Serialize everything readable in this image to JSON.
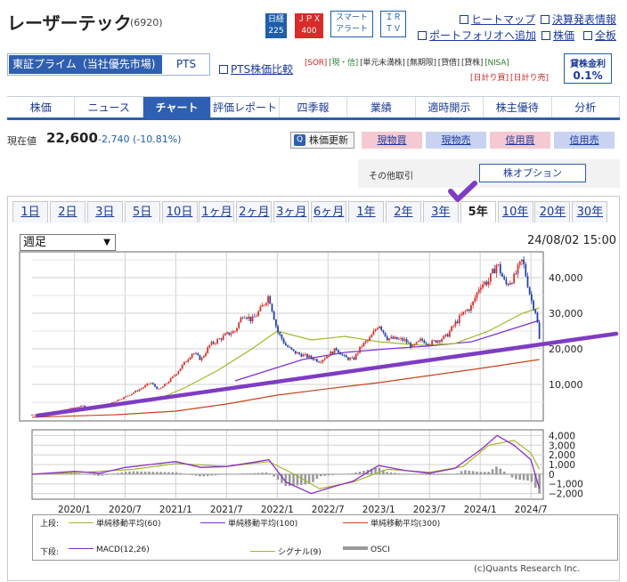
{
  "header": {
    "title": "レーザーテック",
    "code": "(6920)",
    "badges": [
      {
        "top": "日経",
        "bottom": "225"
      },
      {
        "top": "ＪＰＸ",
        "bottom": "400"
      },
      {
        "top": "スマート",
        "bottom": "アラート"
      },
      {
        "top": "ＩＲ",
        "bottom": "ＴＶ"
      }
    ],
    "links": [
      "ヒートマップ",
      "決算発表情報",
      "ポートフォリオへ追加",
      "株価",
      "全板"
    ]
  },
  "market": {
    "selected": "東証プライム（当社優先市場)",
    "pts": "PTS",
    "pts_link": "PTS株価比較"
  },
  "tags_row1": [
    {
      "t": "[SOR]",
      "c": "red"
    },
    {
      "t": "[現・信]",
      "c": "green"
    },
    {
      "t": "[単元未満株]",
      "c": ""
    },
    {
      "t": "[無期限]",
      "c": ""
    },
    {
      "t": "[貸借]",
      "c": ""
    },
    {
      "t": "[貸株]",
      "c": ""
    },
    {
      "t": "[NISA]",
      "c": "green"
    }
  ],
  "tags_row2": [
    "[日計り買]",
    "[日計り売]"
  ],
  "rate": {
    "label": "貸株金利",
    "value": "0.1%"
  },
  "nav": {
    "items": [
      "株価",
      "ニュース",
      "チャート",
      "評価レポート",
      "四季報",
      "業績",
      "適時開示",
      "株主優待",
      "分析"
    ],
    "active": 2
  },
  "price": {
    "label": "現在値",
    "value": "22,600",
    "change": "-2,740 (-10.81%)"
  },
  "actions": {
    "update": "株価更新",
    "buy": "現物買",
    "sell": "現物売",
    "margin_buy": "信用買",
    "margin_sell": "信用売"
  },
  "other": {
    "label": "その他取引",
    "option": "株オプション"
  },
  "periods": {
    "items": [
      "1日",
      "2日",
      "3日",
      "5日",
      "10日",
      "1ヶ月",
      "2ヶ月",
      "3ヶ月",
      "6ヶ月",
      "1年",
      "2年",
      "3年",
      "5年",
      "10年",
      "20年",
      "30年"
    ],
    "active": 12
  },
  "select": {
    "value": "週足"
  },
  "datetime": "24/08/02 15:00",
  "credit": "(c)Quants Research Inc.",
  "legend": {
    "upper_label": "上段:",
    "lower_label": "下段:",
    "upper": [
      {
        "name": "単純移動平均(60)",
        "color": "#a7b52b"
      },
      {
        "name": "単純移動平均(100)",
        "color": "#7e2fd8"
      },
      {
        "name": "単純移動平均(300)",
        "color": "#c8441c"
      }
    ],
    "lower": [
      {
        "name": "MACD(12,26)",
        "color": "#8b2dc6"
      },
      {
        "name": "シグナル(9)",
        "color": "#a7b52b"
      },
      {
        "name": "OSCI",
        "color": "#999999"
      }
    ]
  },
  "colors": {
    "accent": "#2f5fb0",
    "candle_up": "#d9312b",
    "candle_down": "#2444a8",
    "trend": "#7e3cc4"
  },
  "chart_data": [
    {
      "type": "candlestick",
      "title": "",
      "period": "weekly",
      "x_range": [
        "2019-08",
        "2024-08"
      ],
      "xticks": [
        "2020/1",
        "2020/7",
        "2021/1",
        "2021/7",
        "2022/1",
        "2022/7",
        "2023/1",
        "2023/7",
        "2024/1",
        "2024/7"
      ],
      "yticks": [
        "10,000",
        "20,000",
        "30,000",
        "40,000"
      ],
      "ylim": [
        0,
        47000
      ],
      "grid": true,
      "close_path": [
        {
          "x": "2019-08",
          "y": 1500
        },
        {
          "x": "2019-10",
          "y": 2000
        },
        {
          "x": "2019-12",
          "y": 3000
        },
        {
          "x": "2020-02",
          "y": 4000
        },
        {
          "x": "2020-03",
          "y": 3000
        },
        {
          "x": "2020-05",
          "y": 4500
        },
        {
          "x": "2020-07",
          "y": 6500
        },
        {
          "x": "2020-09",
          "y": 9000
        },
        {
          "x": "2020-10",
          "y": 10500
        },
        {
          "x": "2020-11",
          "y": 8500
        },
        {
          "x": "2020-12",
          "y": 10500
        },
        {
          "x": "2021-01",
          "y": 13000
        },
        {
          "x": "2021-02",
          "y": 16000
        },
        {
          "x": "2021-03",
          "y": 19000
        },
        {
          "x": "2021-04",
          "y": 17000
        },
        {
          "x": "2021-05",
          "y": 21000
        },
        {
          "x": "2021-07",
          "y": 24000
        },
        {
          "x": "2021-08",
          "y": 25000
        },
        {
          "x": "2021-09",
          "y": 30000
        },
        {
          "x": "2021-10",
          "y": 28000
        },
        {
          "x": "2021-11",
          "y": 31000
        },
        {
          "x": "2021-12",
          "y": 35000
        },
        {
          "x": "2022-01",
          "y": 25000
        },
        {
          "x": "2022-02",
          "y": 21000
        },
        {
          "x": "2022-03",
          "y": 19000
        },
        {
          "x": "2022-05",
          "y": 17500
        },
        {
          "x": "2022-06",
          "y": 16500
        },
        {
          "x": "2022-08",
          "y": 20000
        },
        {
          "x": "2022-09",
          "y": 17500
        },
        {
          "x": "2022-10",
          "y": 17000
        },
        {
          "x": "2022-11",
          "y": 21000
        },
        {
          "x": "2022-12",
          "y": 23000
        },
        {
          "x": "2023-01",
          "y": 27000
        },
        {
          "x": "2023-02",
          "y": 23000
        },
        {
          "x": "2023-04",
          "y": 22500
        },
        {
          "x": "2023-05",
          "y": 20500
        },
        {
          "x": "2023-06",
          "y": 22500
        },
        {
          "x": "2023-07",
          "y": 21500
        },
        {
          "x": "2023-09",
          "y": 23500
        },
        {
          "x": "2023-10",
          "y": 27000
        },
        {
          "x": "2023-11",
          "y": 30000
        },
        {
          "x": "2023-12",
          "y": 32000
        },
        {
          "x": "2024-01",
          "y": 38000
        },
        {
          "x": "2024-02",
          "y": 39000
        },
        {
          "x": "2024-03",
          "y": 44000
        },
        {
          "x": "2024-04",
          "y": 38000
        },
        {
          "x": "2024-05",
          "y": 40000
        },
        {
          "x": "2024-06",
          "y": 45000
        },
        {
          "x": "2024-07",
          "y": 34000
        },
        {
          "x": "2024-07-20",
          "y": 30000
        },
        {
          "x": "2024-08",
          "y": 22600
        }
      ],
      "sma60": [
        {
          "x": "2020-11",
          "y": 6000
        },
        {
          "x": "2021-02",
          "y": 9000
        },
        {
          "x": "2021-06",
          "y": 14000
        },
        {
          "x": "2021-10",
          "y": 20000
        },
        {
          "x": "2022-01",
          "y": 25000
        },
        {
          "x": "2022-05",
          "y": 22500
        },
        {
          "x": "2022-09",
          "y": 23500
        },
        {
          "x": "2023-01",
          "y": 22000
        },
        {
          "x": "2023-06",
          "y": 21000
        },
        {
          "x": "2023-10",
          "y": 21500
        },
        {
          "x": "2024-02",
          "y": 25000
        },
        {
          "x": "2024-06",
          "y": 30000
        },
        {
          "x": "2024-08",
          "y": 31500
        }
      ],
      "sma100": [
        {
          "x": "2021-08",
          "y": 11000
        },
        {
          "x": "2021-12",
          "y": 14000
        },
        {
          "x": "2022-04",
          "y": 17000
        },
        {
          "x": "2022-09",
          "y": 19000
        },
        {
          "x": "2023-02",
          "y": 20000
        },
        {
          "x": "2023-07",
          "y": 20800
        },
        {
          "x": "2023-12",
          "y": 22000
        },
        {
          "x": "2024-04",
          "y": 25000
        },
        {
          "x": "2024-08",
          "y": 28000
        }
      ],
      "sma300": [
        {
          "x": "2019-08",
          "y": 800
        },
        {
          "x": "2020-06",
          "y": 1500
        },
        {
          "x": "2021-01",
          "y": 2500
        },
        {
          "x": "2021-07",
          "y": 4500
        },
        {
          "x": "2022-01",
          "y": 7000
        },
        {
          "x": "2022-07",
          "y": 8800
        },
        {
          "x": "2023-01",
          "y": 10500
        },
        {
          "x": "2023-07",
          "y": 12500
        },
        {
          "x": "2024-01",
          "y": 14500
        },
        {
          "x": "2024-08",
          "y": 17000
        }
      ]
    },
    {
      "type": "macd",
      "yticks": [
        "4,000",
        "3,000",
        "2,000",
        "1,000",
        "0",
        "−1,000",
        "−2,000"
      ],
      "ylim": [
        -2500,
        4500
      ],
      "macd": [
        {
          "x": "2019-08",
          "y": 0
        },
        {
          "x": "2020-01",
          "y": 300
        },
        {
          "x": "2020-04",
          "y": 100
        },
        {
          "x": "2020-07",
          "y": 700
        },
        {
          "x": "2020-10",
          "y": 1000
        },
        {
          "x": "2021-01",
          "y": 1300
        },
        {
          "x": "2021-04",
          "y": 700
        },
        {
          "x": "2021-07",
          "y": 800
        },
        {
          "x": "2021-10",
          "y": 1200
        },
        {
          "x": "2021-12",
          "y": 1500
        },
        {
          "x": "2022-02",
          "y": -800
        },
        {
          "x": "2022-05",
          "y": -2000
        },
        {
          "x": "2022-08",
          "y": -1200
        },
        {
          "x": "2022-10",
          "y": -700
        },
        {
          "x": "2023-01",
          "y": 900
        },
        {
          "x": "2023-04",
          "y": 400
        },
        {
          "x": "2023-07",
          "y": 100
        },
        {
          "x": "2023-10",
          "y": 600
        },
        {
          "x": "2024-01",
          "y": 2500
        },
        {
          "x": "2024-03",
          "y": 4000
        },
        {
          "x": "2024-05",
          "y": 3000
        },
        {
          "x": "2024-07",
          "y": 1500
        },
        {
          "x": "2024-08",
          "y": -1500
        }
      ],
      "signal": [
        {
          "x": "2019-08",
          "y": 0
        },
        {
          "x": "2020-02",
          "y": 200
        },
        {
          "x": "2020-08",
          "y": 500
        },
        {
          "x": "2021-01",
          "y": 1100
        },
        {
          "x": "2021-07",
          "y": 800
        },
        {
          "x": "2021-12",
          "y": 1300
        },
        {
          "x": "2022-03",
          "y": 0
        },
        {
          "x": "2022-06",
          "y": -1500
        },
        {
          "x": "2022-10",
          "y": -800
        },
        {
          "x": "2023-02",
          "y": 500
        },
        {
          "x": "2023-07",
          "y": 200
        },
        {
          "x": "2023-11",
          "y": 800
        },
        {
          "x": "2024-02",
          "y": 3000
        },
        {
          "x": "2024-05",
          "y": 3500
        },
        {
          "x": "2024-07",
          "y": 2200
        },
        {
          "x": "2024-08",
          "y": 500
        }
      ]
    }
  ]
}
